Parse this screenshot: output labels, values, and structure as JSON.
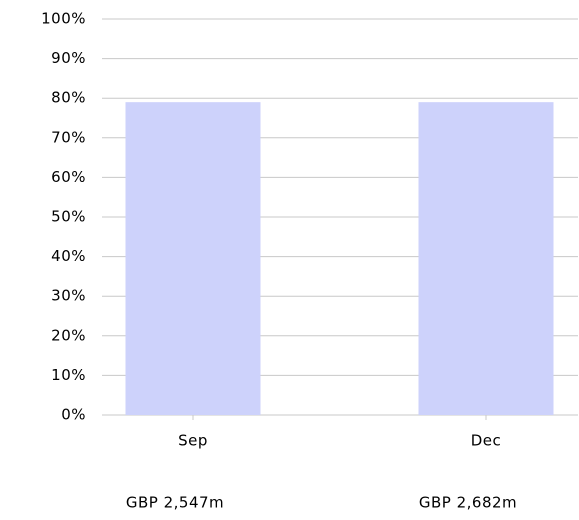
{
  "chart_data": {
    "type": "bar",
    "categories": [
      "Sep",
      "Dec"
    ],
    "values": [
      79,
      79
    ],
    "color": "#cdd2fb",
    "annotations": [
      "GBP 2,547m",
      "GBP 2,682m"
    ],
    "ylim": [
      0,
      100
    ],
    "yticks": [
      {
        "value": 0,
        "label": "0%"
      },
      {
        "value": 10,
        "label": "10%"
      },
      {
        "value": 20,
        "label": "20%"
      },
      {
        "value": 30,
        "label": "30%"
      },
      {
        "value": 40,
        "label": "40%"
      },
      {
        "value": 50,
        "label": "50%"
      },
      {
        "value": 60,
        "label": "60%"
      },
      {
        "value": 70,
        "label": "70%"
      },
      {
        "value": 80,
        "label": "80%"
      },
      {
        "value": 90,
        "label": "90%"
      },
      {
        "value": 100,
        "label": "100%"
      }
    ],
    "grid": true
  }
}
